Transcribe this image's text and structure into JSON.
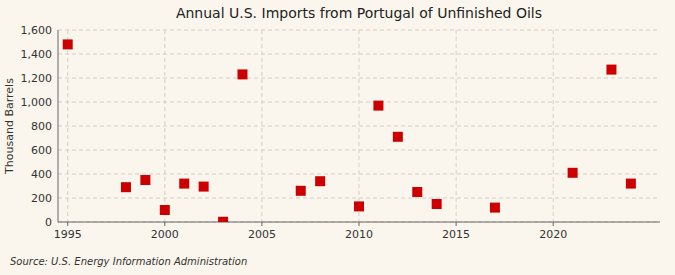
{
  "chart_data": {
    "type": "scatter",
    "title": "Annual U.S. Imports from Portugal of Unfinished Oils",
    "ylabel": "Thousand Barrels",
    "annotations": [
      "Source: U.S. Energy Information Administration"
    ],
    "x": [
      1995,
      1998,
      1999,
      2000,
      2001,
      2002,
      2003,
      2004,
      2007,
      2008,
      2010,
      2011,
      2012,
      2013,
      2014,
      2017,
      2021,
      2023,
      2024
    ],
    "values": [
      1480,
      290,
      350,
      100,
      320,
      295,
      2,
      1230,
      260,
      340,
      130,
      970,
      710,
      250,
      150,
      120,
      410,
      1270,
      320
    ],
    "color": "#cc0000",
    "marker": "square",
    "xlim": [
      1994.5,
      2025.5
    ],
    "ylim": [
      0,
      1600
    ],
    "xticks": [
      1995,
      2000,
      2005,
      2010,
      2015,
      2020
    ],
    "yticks": [
      0,
      200,
      400,
      600,
      800,
      {
        "value": 1000,
        "label": "1,000"
      },
      {
        "value": 1200,
        "label": "1,200"
      },
      {
        "value": 1400,
        "label": "1,400"
      },
      {
        "value": 1600,
        "label": "1,600"
      }
    ],
    "grid": true
  }
}
